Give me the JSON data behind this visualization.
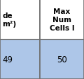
{
  "col1_header_lines": [
    "de",
    "m²)"
  ],
  "col2_header_lines": [
    "Max",
    "Num",
    "Cells I"
  ],
  "col1_value": "49",
  "col2_value": "50",
  "header_bg": "#ffffff",
  "data_bg": "#adc6e8",
  "border_color": "#707070",
  "text_color": "#000000",
  "header_fontsize": 7.5,
  "data_fontsize": 8.5,
  "col_split": 57,
  "row_split": 57,
  "lw": 1.2
}
